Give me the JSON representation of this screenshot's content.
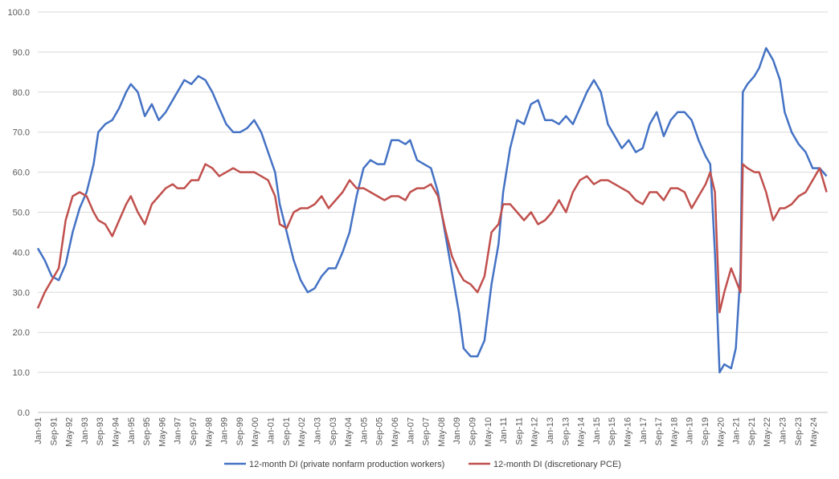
{
  "chart_data": {
    "type": "line",
    "title": "",
    "xlabel": "",
    "ylabel": "",
    "ylim": [
      0,
      100
    ],
    "y_ticks": [
      "0.0",
      "10.0",
      "20.0",
      "30.0",
      "40.0",
      "50.0",
      "60.0",
      "70.0",
      "80.0",
      "90.0",
      "100.0"
    ],
    "x_ticks": [
      "Jan-91",
      "Sep-91",
      "May-92",
      "Jan-93",
      "Sep-93",
      "May-94",
      "Jan-95",
      "Sep-95",
      "May-96",
      "Jan-97",
      "Sep-97",
      "May-98",
      "Jan-99",
      "Sep-99",
      "May-00",
      "Jan-01",
      "Sep-01",
      "May-02",
      "Jan-03",
      "Sep-03",
      "May-04",
      "Jan-05",
      "Sep-05",
      "May-06",
      "Jan-07",
      "Sep-07",
      "May-08",
      "Jan-09",
      "Sep-09",
      "May-10",
      "Jan-11",
      "Sep-11",
      "May-12",
      "Jan-13",
      "Sep-13",
      "May-14",
      "Jan-15",
      "Sep-15",
      "May-16",
      "Jan-17",
      "Sep-17",
      "May-18",
      "Jan-19",
      "Sep-19",
      "May-20",
      "Jan-21",
      "Sep-21",
      "May-22",
      "Jan-23",
      "Sep-23",
      "May-24"
    ],
    "grid": "horizontal",
    "legend_position": "bottom",
    "series": [
      {
        "name": "12-month DI (private nonfarm production workers)",
        "color": "#4472C4",
        "points": [
          [
            1991.0,
            41
          ],
          [
            1991.3,
            38
          ],
          [
            1991.6,
            34
          ],
          [
            1991.9,
            33
          ],
          [
            1992.2,
            37
          ],
          [
            1992.5,
            45
          ],
          [
            1992.8,
            51
          ],
          [
            1993.1,
            55
          ],
          [
            1993.4,
            62
          ],
          [
            1993.6,
            70
          ],
          [
            1993.9,
            72
          ],
          [
            1994.2,
            73
          ],
          [
            1994.5,
            76
          ],
          [
            1994.8,
            80
          ],
          [
            1995.0,
            82
          ],
          [
            1995.3,
            80
          ],
          [
            1995.6,
            74
          ],
          [
            1995.9,
            77
          ],
          [
            1996.2,
            73
          ],
          [
            1996.5,
            75
          ],
          [
            1996.8,
            78
          ],
          [
            1997.0,
            80
          ],
          [
            1997.3,
            83
          ],
          [
            1997.6,
            82
          ],
          [
            1997.9,
            84
          ],
          [
            1998.2,
            83
          ],
          [
            1998.5,
            80
          ],
          [
            1998.8,
            76
          ],
          [
            1999.1,
            72
          ],
          [
            1999.4,
            70
          ],
          [
            1999.7,
            70
          ],
          [
            2000.0,
            71
          ],
          [
            2000.3,
            73
          ],
          [
            2000.6,
            70
          ],
          [
            2000.9,
            65
          ],
          [
            2001.2,
            60
          ],
          [
            2001.4,
            52
          ],
          [
            2001.7,
            45
          ],
          [
            2002.0,
            38
          ],
          [
            2002.3,
            33
          ],
          [
            2002.6,
            30
          ],
          [
            2002.9,
            31
          ],
          [
            2003.2,
            34
          ],
          [
            2003.5,
            36
          ],
          [
            2003.8,
            36
          ],
          [
            2004.1,
            40
          ],
          [
            2004.4,
            45
          ],
          [
            2004.7,
            54
          ],
          [
            2005.0,
            61
          ],
          [
            2005.3,
            63
          ],
          [
            2005.6,
            62
          ],
          [
            2005.9,
            62
          ],
          [
            2006.2,
            68
          ],
          [
            2006.5,
            68
          ],
          [
            2006.8,
            67
          ],
          [
            2007.0,
            68
          ],
          [
            2007.3,
            63
          ],
          [
            2007.6,
            62
          ],
          [
            2007.9,
            61
          ],
          [
            2008.2,
            55
          ],
          [
            2008.5,
            45
          ],
          [
            2008.8,
            35
          ],
          [
            2009.1,
            25
          ],
          [
            2009.3,
            16
          ],
          [
            2009.6,
            14
          ],
          [
            2009.9,
            14
          ],
          [
            2010.2,
            18
          ],
          [
            2010.5,
            32
          ],
          [
            2010.8,
            42
          ],
          [
            2011.0,
            55
          ],
          [
            2011.3,
            66
          ],
          [
            2011.6,
            73
          ],
          [
            2011.9,
            72
          ],
          [
            2012.2,
            77
          ],
          [
            2012.5,
            78
          ],
          [
            2012.8,
            73
          ],
          [
            2013.1,
            73
          ],
          [
            2013.4,
            72
          ],
          [
            2013.7,
            74
          ],
          [
            2014.0,
            72
          ],
          [
            2014.3,
            76
          ],
          [
            2014.6,
            80
          ],
          [
            2014.9,
            83
          ],
          [
            2015.2,
            80
          ],
          [
            2015.5,
            72
          ],
          [
            2015.8,
            69
          ],
          [
            2016.1,
            66
          ],
          [
            2016.4,
            68
          ],
          [
            2016.7,
            65
          ],
          [
            2017.0,
            66
          ],
          [
            2017.3,
            72
          ],
          [
            2017.6,
            75
          ],
          [
            2017.9,
            69
          ],
          [
            2018.2,
            73
          ],
          [
            2018.5,
            75
          ],
          [
            2018.8,
            75
          ],
          [
            2019.1,
            73
          ],
          [
            2019.4,
            68
          ],
          [
            2019.7,
            64
          ],
          [
            2019.9,
            62
          ],
          [
            2020.1,
            40
          ],
          [
            2020.3,
            10
          ],
          [
            2020.5,
            12
          ],
          [
            2020.8,
            11
          ],
          [
            2021.0,
            16
          ],
          [
            2021.2,
            35
          ],
          [
            2021.3,
            80
          ],
          [
            2021.5,
            82
          ],
          [
            2021.8,
            84
          ],
          [
            2022.0,
            86
          ],
          [
            2022.3,
            91
          ],
          [
            2022.6,
            88
          ],
          [
            2022.9,
            83
          ],
          [
            2023.1,
            75
          ],
          [
            2023.4,
            70
          ],
          [
            2023.7,
            67
          ],
          [
            2024.0,
            65
          ],
          [
            2024.3,
            61
          ],
          [
            2024.6,
            61
          ],
          [
            2024.9,
            59
          ]
        ]
      },
      {
        "name": "12-month DI (discretionary PCE)",
        "color": "#C0504D",
        "points": [
          [
            1991.0,
            26
          ],
          [
            1991.3,
            30
          ],
          [
            1991.6,
            33
          ],
          [
            1991.9,
            36
          ],
          [
            1992.2,
            48
          ],
          [
            1992.5,
            54
          ],
          [
            1992.8,
            55
          ],
          [
            1993.1,
            54
          ],
          [
            1993.4,
            50
          ],
          [
            1993.6,
            48
          ],
          [
            1993.9,
            47
          ],
          [
            1994.2,
            44
          ],
          [
            1994.5,
            48
          ],
          [
            1994.8,
            52
          ],
          [
            1995.0,
            54
          ],
          [
            1995.3,
            50
          ],
          [
            1995.6,
            47
          ],
          [
            1995.9,
            52
          ],
          [
            1996.2,
            54
          ],
          [
            1996.5,
            56
          ],
          [
            1996.8,
            57
          ],
          [
            1997.0,
            56
          ],
          [
            1997.3,
            56
          ],
          [
            1997.6,
            58
          ],
          [
            1997.9,
            58
          ],
          [
            1998.2,
            62
          ],
          [
            1998.5,
            61
          ],
          [
            1998.8,
            59
          ],
          [
            1999.1,
            60
          ],
          [
            1999.4,
            61
          ],
          [
            1999.7,
            60
          ],
          [
            2000.0,
            60
          ],
          [
            2000.3,
            60
          ],
          [
            2000.6,
            59
          ],
          [
            2000.9,
            58
          ],
          [
            2001.2,
            54
          ],
          [
            2001.4,
            47
          ],
          [
            2001.7,
            46
          ],
          [
            2002.0,
            50
          ],
          [
            2002.3,
            51
          ],
          [
            2002.6,
            51
          ],
          [
            2002.9,
            52
          ],
          [
            2003.2,
            54
          ],
          [
            2003.5,
            51
          ],
          [
            2003.8,
            53
          ],
          [
            2004.1,
            55
          ],
          [
            2004.4,
            58
          ],
          [
            2004.7,
            56
          ],
          [
            2005.0,
            56
          ],
          [
            2005.3,
            55
          ],
          [
            2005.6,
            54
          ],
          [
            2005.9,
            53
          ],
          [
            2006.2,
            54
          ],
          [
            2006.5,
            54
          ],
          [
            2006.8,
            53
          ],
          [
            2007.0,
            55
          ],
          [
            2007.3,
            56
          ],
          [
            2007.6,
            56
          ],
          [
            2007.9,
            57
          ],
          [
            2008.2,
            54
          ],
          [
            2008.5,
            46
          ],
          [
            2008.8,
            39
          ],
          [
            2009.1,
            35
          ],
          [
            2009.3,
            33
          ],
          [
            2009.6,
            32
          ],
          [
            2009.9,
            30
          ],
          [
            2010.2,
            34
          ],
          [
            2010.5,
            45
          ],
          [
            2010.8,
            47
          ],
          [
            2011.0,
            52
          ],
          [
            2011.3,
            52
          ],
          [
            2011.6,
            50
          ],
          [
            2011.9,
            48
          ],
          [
            2012.2,
            50
          ],
          [
            2012.5,
            47
          ],
          [
            2012.8,
            48
          ],
          [
            2013.1,
            50
          ],
          [
            2013.4,
            53
          ],
          [
            2013.7,
            50
          ],
          [
            2014.0,
            55
          ],
          [
            2014.3,
            58
          ],
          [
            2014.6,
            59
          ],
          [
            2014.9,
            57
          ],
          [
            2015.2,
            58
          ],
          [
            2015.5,
            58
          ],
          [
            2015.8,
            57
          ],
          [
            2016.1,
            56
          ],
          [
            2016.4,
            55
          ],
          [
            2016.7,
            53
          ],
          [
            2017.0,
            52
          ],
          [
            2017.3,
            55
          ],
          [
            2017.6,
            55
          ],
          [
            2017.9,
            53
          ],
          [
            2018.2,
            56
          ],
          [
            2018.5,
            56
          ],
          [
            2018.8,
            55
          ],
          [
            2019.1,
            51
          ],
          [
            2019.4,
            54
          ],
          [
            2019.7,
            57
          ],
          [
            2019.9,
            60
          ],
          [
            2020.1,
            55
          ],
          [
            2020.3,
            25
          ],
          [
            2020.5,
            30
          ],
          [
            2020.8,
            36
          ],
          [
            2021.0,
            33
          ],
          [
            2021.2,
            30
          ],
          [
            2021.3,
            62
          ],
          [
            2021.5,
            61
          ],
          [
            2021.8,
            60
          ],
          [
            2022.0,
            60
          ],
          [
            2022.3,
            55
          ],
          [
            2022.6,
            48
          ],
          [
            2022.9,
            51
          ],
          [
            2023.1,
            51
          ],
          [
            2023.4,
            52
          ],
          [
            2023.7,
            54
          ],
          [
            2024.0,
            55
          ],
          [
            2024.3,
            58
          ],
          [
            2024.6,
            61
          ],
          [
            2024.9,
            55
          ]
        ]
      }
    ]
  }
}
